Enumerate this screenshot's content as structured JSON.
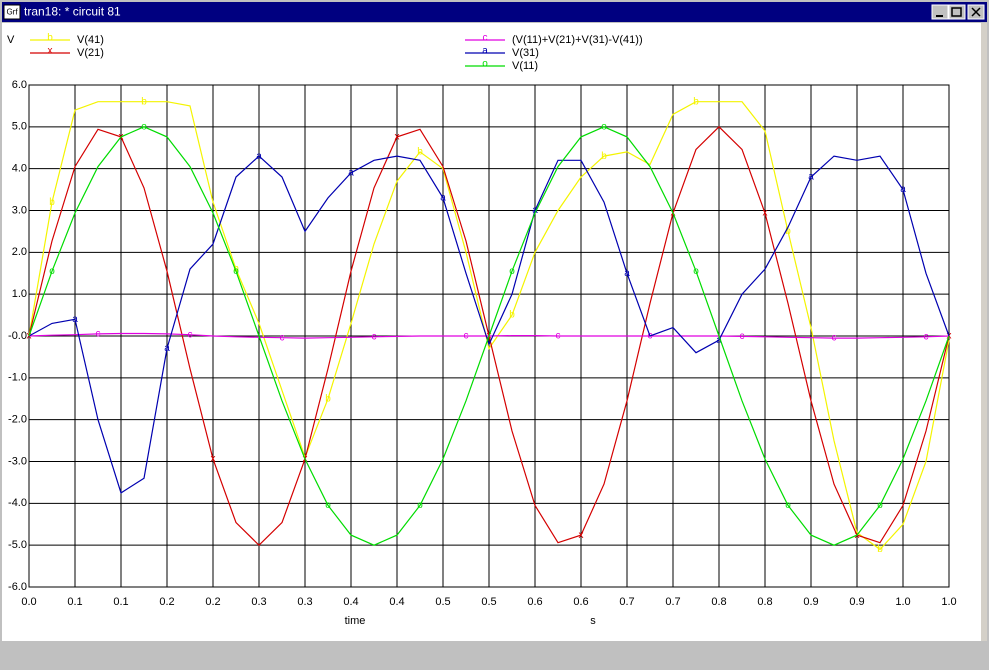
{
  "window": {
    "title": "tran18: * circuit 81",
    "icon_label": "Grf"
  },
  "chart_data": {
    "type": "line",
    "y_axis_label": "V",
    "x_axis_label": "time",
    "x_unit_label": "s",
    "x": [
      0,
      0.025,
      0.05,
      0.075,
      0.1,
      0.125,
      0.15,
      0.175,
      0.2,
      0.225,
      0.25,
      0.275,
      0.3,
      0.325,
      0.35,
      0.375,
      0.4,
      0.425,
      0.45,
      0.475,
      0.5,
      0.525,
      0.55,
      0.575,
      0.6,
      0.625,
      0.65,
      0.675,
      0.7,
      0.725,
      0.75,
      0.775,
      0.8,
      0.825,
      0.85,
      0.875,
      0.9,
      0.925,
      0.95,
      0.975,
      1
    ],
    "series": [
      {
        "name": "V(41)",
        "marker": "b",
        "color": "#f4f400",
        "values": [
          0,
          3.2,
          5.4,
          5.6,
          5.6,
          5.6,
          5.6,
          5.5,
          3.2,
          1.6,
          0.3,
          -1.3,
          -2.9,
          -1.5,
          0.3,
          2.2,
          3.7,
          4.4,
          4.0,
          2.0,
          -0.3,
          0.5,
          2.0,
          3.0,
          3.8,
          4.3,
          4.4,
          4.1,
          5.3,
          5.6,
          5.6,
          5.6,
          4.9,
          2.5,
          0.2,
          -2.5,
          -4.7,
          -5.1,
          -4.5,
          -3.0,
          -0.1
        ]
      },
      {
        "name": "V(21)",
        "marker": "x",
        "color": "#d40000",
        "values": [
          0,
          2.27,
          4.05,
          4.94,
          4.76,
          3.54,
          1.55,
          -0.78,
          -2.94,
          -4.46,
          -5,
          -4.46,
          -2.94,
          -0.78,
          1.55,
          3.54,
          4.76,
          4.94,
          4.05,
          2.27,
          0,
          -2.27,
          -4.05,
          -4.94,
          -4.76,
          -3.54,
          -1.55,
          0.78,
          2.94,
          4.46,
          5,
          4.46,
          2.94,
          0.78,
          -1.55,
          -3.54,
          -4.76,
          -4.94,
          -4.05,
          -2.27,
          0
        ]
      },
      {
        "name": "(V(11)+V(21)+V(31)-V(41))",
        "marker": "c",
        "color": "#e000e0",
        "values": [
          0,
          0.02,
          0.03,
          0.05,
          0.06,
          0.06,
          0.05,
          0.03,
          0,
          -0.02,
          -0.03,
          -0.04,
          -0.05,
          -0.04,
          -0.03,
          -0.02,
          -0.01,
          0,
          0,
          0,
          0,
          0.01,
          0.01,
          0,
          0,
          0,
          0,
          0,
          0,
          0,
          0,
          -0.01,
          -0.02,
          -0.03,
          -0.04,
          -0.05,
          -0.05,
          -0.04,
          -0.03,
          -0.02,
          0
        ]
      },
      {
        "name": "V(31)",
        "marker": "a",
        "color": "#0000b0",
        "values": [
          0,
          0.3,
          0.4,
          -2.0,
          -3.75,
          -3.4,
          -0.3,
          1.6,
          2.2,
          3.8,
          4.3,
          3.8,
          2.5,
          3.3,
          3.9,
          4.2,
          4.3,
          4.2,
          3.3,
          1.5,
          -0.2,
          1.0,
          3.0,
          4.2,
          4.2,
          3.2,
          1.5,
          0.0,
          0.2,
          -0.4,
          -0.1,
          1.0,
          1.6,
          2.6,
          3.8,
          4.3,
          4.2,
          4.3,
          3.5,
          1.5,
          0
        ]
      },
      {
        "name": "V(11)",
        "marker": "o",
        "color": "#00dc00",
        "values": [
          0,
          1.55,
          2.94,
          4.05,
          4.76,
          5,
          4.76,
          4.05,
          2.94,
          1.55,
          0,
          -1.55,
          -2.94,
          -4.05,
          -4.76,
          -5,
          -4.76,
          -4.05,
          -2.94,
          -1.55,
          0,
          1.55,
          2.94,
          4.05,
          4.76,
          5,
          4.76,
          4.05,
          2.94,
          1.55,
          0,
          -1.55,
          -2.94,
          -4.05,
          -4.76,
          -5,
          -4.76,
          -4.05,
          -2.94,
          -1.55,
          0
        ]
      }
    ],
    "xlim": [
      0,
      1
    ],
    "ylim": [
      -6,
      6
    ],
    "xticks": [
      {
        "value": 0,
        "label": "0.0"
      },
      {
        "value": 0.05,
        "label": "0.1"
      },
      {
        "value": 0.1,
        "label": "0.1"
      },
      {
        "value": 0.15,
        "label": "0.2"
      },
      {
        "value": 0.2,
        "label": "0.2"
      },
      {
        "value": 0.25,
        "label": "0.3"
      },
      {
        "value": 0.3,
        "label": "0.3"
      },
      {
        "value": 0.35,
        "label": "0.4"
      },
      {
        "value": 0.4,
        "label": "0.4"
      },
      {
        "value": 0.45,
        "label": "0.5"
      },
      {
        "value": 0.5,
        "label": "0.5"
      },
      {
        "value": 0.55,
        "label": "0.6"
      },
      {
        "value": 0.6,
        "label": "0.6"
      },
      {
        "value": 0.65,
        "label": "0.7"
      },
      {
        "value": 0.7,
        "label": "0.7"
      },
      {
        "value": 0.75,
        "label": "0.8"
      },
      {
        "value": 0.8,
        "label": "0.8"
      },
      {
        "value": 0.85,
        "label": "0.9"
      },
      {
        "value": 0.9,
        "label": "0.9"
      },
      {
        "value": 0.95,
        "label": "1.0"
      },
      {
        "value": 1,
        "label": "1.0"
      }
    ],
    "yticks": [
      {
        "value": 6,
        "label": "6.0"
      },
      {
        "value": 5,
        "label": "5.0"
      },
      {
        "value": 4,
        "label": "4.0"
      },
      {
        "value": 3,
        "label": "3.0"
      },
      {
        "value": 2,
        "label": "2.0"
      },
      {
        "value": 1,
        "label": "1.0"
      },
      {
        "value": 0,
        "label": "-0.0"
      },
      {
        "value": -1,
        "label": "-1.0"
      },
      {
        "value": -2,
        "label": "-2.0"
      },
      {
        "value": -3,
        "label": "-3.0"
      },
      {
        "value": -4,
        "label": "-4.0"
      },
      {
        "value": -5,
        "label": "-5.0"
      },
      {
        "value": -6,
        "label": "-6.0"
      }
    ],
    "grid": true
  }
}
